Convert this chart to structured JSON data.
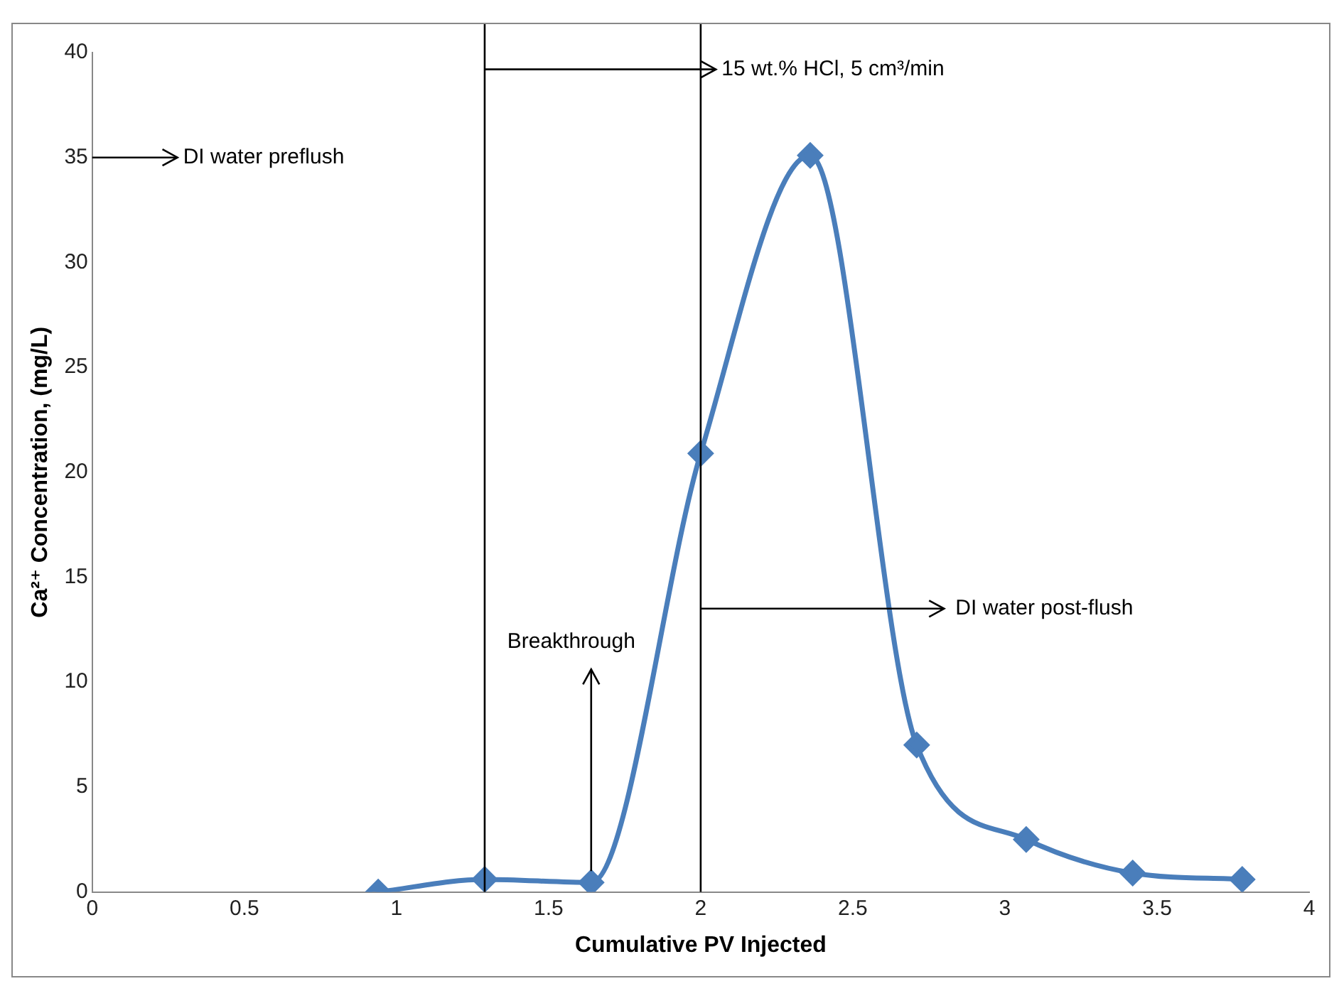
{
  "chart_data": {
    "type": "line",
    "xlabel": "Cumulative PV Injected",
    "ylabel": "Ca²⁺ Concentration, (mg/L)",
    "series": [
      {
        "color": "#4a7ebb",
        "x": [
          0.94,
          1.29,
          1.64,
          2.0,
          2.36,
          2.71,
          3.07,
          3.42,
          3.78
        ],
        "values": [
          0,
          0.6,
          0.45,
          20.9,
          35.1,
          7.0,
          2.5,
          0.9,
          0.6
        ]
      }
    ],
    "xlim": [
      0,
      4
    ],
    "xticks": [
      0,
      0.5,
      1,
      1.5,
      2,
      2.5,
      3,
      3.5,
      4
    ],
    "ylim": [
      0,
      40
    ],
    "yticks": [
      0,
      5,
      10,
      15,
      20,
      25,
      30,
      35,
      40
    ],
    "ref_lines": [
      {
        "axis": "x",
        "value": 1.29,
        "label": null,
        "color": "#000000"
      },
      {
        "axis": "x",
        "value": 2,
        "label": null,
        "color": "#000000"
      }
    ],
    "annotations": [
      "DI water preflush",
      {
        "text": "15 wt.% HCl, 5 cm³/min",
        "x": 1.29,
        "y": 39.2
      },
      {
        "text": "DI water post-flush",
        "x": 2,
        "y": 13.5
      },
      {
        "text": "Breakthrough",
        "x": 1.64,
        "y": 0.45
      }
    ],
    "grid": false,
    "legend": false,
    "marker": "diamond",
    "line_style": "solid"
  }
}
